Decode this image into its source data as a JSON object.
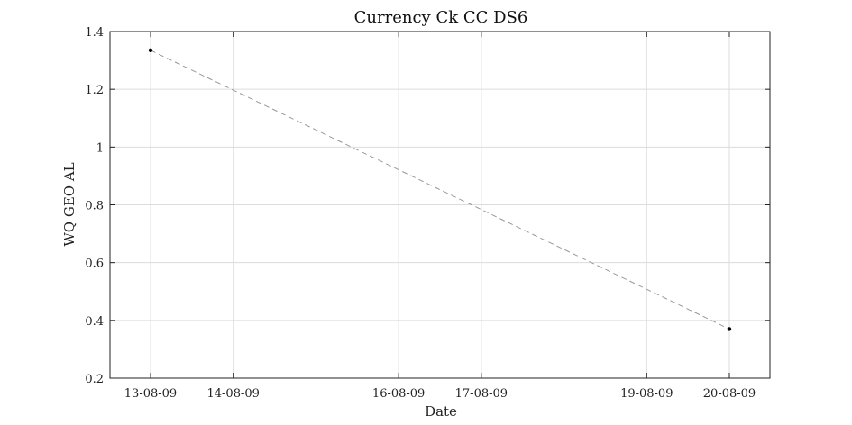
{
  "chart_data": {
    "type": "line",
    "title": "Currency Ck CC DS6",
    "xlabel": "Date",
    "ylabel": "WQ GEO AL",
    "x_ticks": [
      "13-08-09",
      "14-08-09",
      "16-08-09",
      "17-08-09",
      "19-08-09",
      "20-08-09"
    ],
    "x_tick_dates": [
      "2009-08-13",
      "2009-08-14",
      "2009-08-16",
      "2009-08-17",
      "2009-08-19",
      "2009-08-20"
    ],
    "xlim": [
      "2009-08-13",
      "2009-08-20"
    ],
    "y_ticks": [
      0.2,
      0.4,
      0.6,
      0.8,
      1.0,
      1.2,
      1.4
    ],
    "y_tick_labels": [
      "0.2",
      "0.4",
      "0.6",
      "0.8",
      "1",
      "1.2",
      "1.4"
    ],
    "ylim": [
      0.2,
      1.4
    ],
    "grid": true,
    "series": [
      {
        "x": [
          "2009-08-13",
          "2009-08-20"
        ],
        "y": [
          1.335,
          0.37
        ],
        "color": "#999999",
        "marker_color": "#000000",
        "line_style": "dashed"
      }
    ]
  }
}
